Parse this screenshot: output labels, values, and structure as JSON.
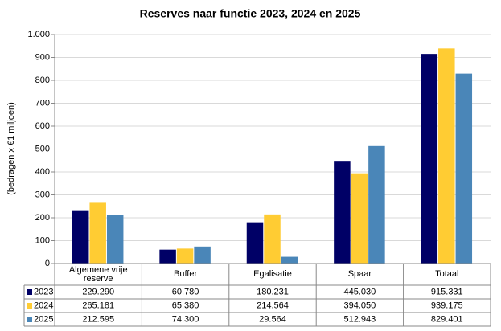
{
  "chart_data": {
    "type": "bar",
    "title": "Reserves naar functie 2023, 2024  en 2025",
    "y_label": "(bedragen x €1 miljoen)",
    "categories": [
      "Algemene vrije reserve",
      "Buffer",
      "Egalisatie",
      "Spaar",
      "Totaal"
    ],
    "series": [
      {
        "name": "2023",
        "color": "#000066",
        "values": [
          229.29,
          60.78,
          180.231,
          445.03,
          915.331
        ],
        "value_labels": [
          "229.290",
          "60.780",
          "180.231",
          "445.030",
          "915.331"
        ]
      },
      {
        "name": "2024",
        "color": "#ffcc33",
        "values": [
          265.181,
          65.38,
          214.564,
          394.05,
          939.175
        ],
        "value_labels": [
          "265.181",
          "65.380",
          "214.564",
          "394.050",
          "939.175"
        ]
      },
      {
        "name": "2025",
        "color": "#4a86b8",
        "values": [
          212.595,
          74.3,
          29.564,
          512.943,
          829.401
        ],
        "value_labels": [
          "212.595",
          "74.300",
          "29.564",
          "512.943",
          "829.401"
        ]
      }
    ],
    "ylim": [
      0,
      1000
    ],
    "yticks": [
      0,
      100,
      200,
      300,
      400,
      500,
      600,
      700,
      800,
      900,
      {
        "value": 1000,
        "label": "1.000"
      }
    ],
    "grid": true
  }
}
